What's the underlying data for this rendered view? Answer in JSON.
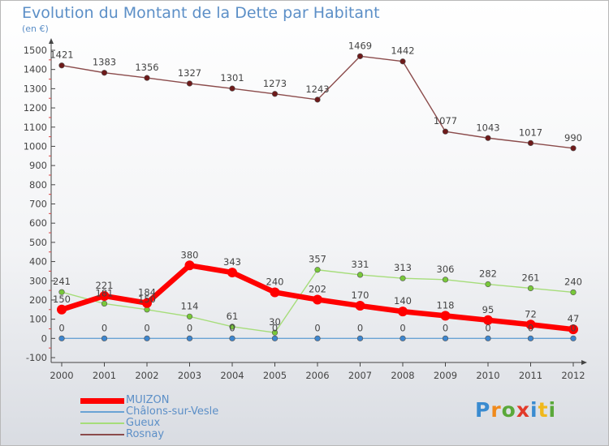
{
  "title": "Evolution du Montant de la Dette par Habitant",
  "unit_label": "(en €)",
  "brand": {
    "name": "Proxiti",
    "letter_colors": [
      "#3a8bd0",
      "#f08a1c",
      "#5aa83a",
      "#e23a2a",
      "#3a8bd0",
      "#f0b81c",
      "#5aa83a"
    ]
  },
  "chart_data": {
    "type": "line",
    "x": [
      "2000",
      "2001",
      "2002",
      "2003",
      "2004",
      "2005",
      "2006",
      "2007",
      "2008",
      "2009",
      "2010",
      "2011",
      "2012"
    ],
    "ylim": [
      -100,
      1500
    ],
    "yticks": [
      -100,
      0,
      100,
      200,
      300,
      400,
      500,
      600,
      700,
      800,
      900,
      1000,
      1100,
      1200,
      1300,
      1400,
      1500
    ],
    "grid": false,
    "legend_position": "bottom-left",
    "series": [
      {
        "name": "MUIZON",
        "color": "#ff0000",
        "marker_color": "#ff0000",
        "values": [
          150,
          221,
          184,
          380,
          343,
          240,
          202,
          170,
          140,
          118,
          95,
          72,
          47
        ],
        "labels": [
          "150",
          "221",
          "184",
          "380",
          "343",
          "240",
          "202",
          "170",
          "140",
          "118",
          "95",
          "72",
          "47"
        ],
        "emphasis": true
      },
      {
        "name": "Châlons-sur-Vesle",
        "color": "#6aa3d4",
        "marker_color": "#3d86cf",
        "values": [
          0,
          0,
          0,
          0,
          0,
          0,
          0,
          0,
          0,
          0,
          0,
          0,
          0
        ],
        "labels": [
          "0",
          "0",
          "0",
          "0",
          "0",
          "0",
          "0",
          "0",
          "0",
          "0",
          "0",
          "0",
          "0"
        ]
      },
      {
        "name": "Gueux",
        "color": "#a6dd7a",
        "marker_color": "#78c83a",
        "values": [
          241,
          181,
          150,
          114,
          61,
          30,
          357,
          331,
          313,
          306,
          282,
          261,
          240
        ],
        "labels": [
          "241",
          "181",
          "150",
          "114",
          "61",
          "30",
          "357",
          "331",
          "313",
          "306",
          "282",
          "261",
          "240"
        ]
      },
      {
        "name": "Rosnay",
        "color": "#8b4b4b",
        "marker_color": "#6e1a1a",
        "values": [
          1421,
          1383,
          1356,
          1327,
          1301,
          1273,
          1243,
          1469,
          1442,
          1077,
          1043,
          1017,
          990
        ],
        "labels": [
          "1421",
          "1383",
          "1356",
          "1327",
          "1301",
          "1273",
          "1243",
          "1469",
          "1442",
          "1077",
          "1043",
          "1017",
          "990"
        ]
      }
    ]
  }
}
